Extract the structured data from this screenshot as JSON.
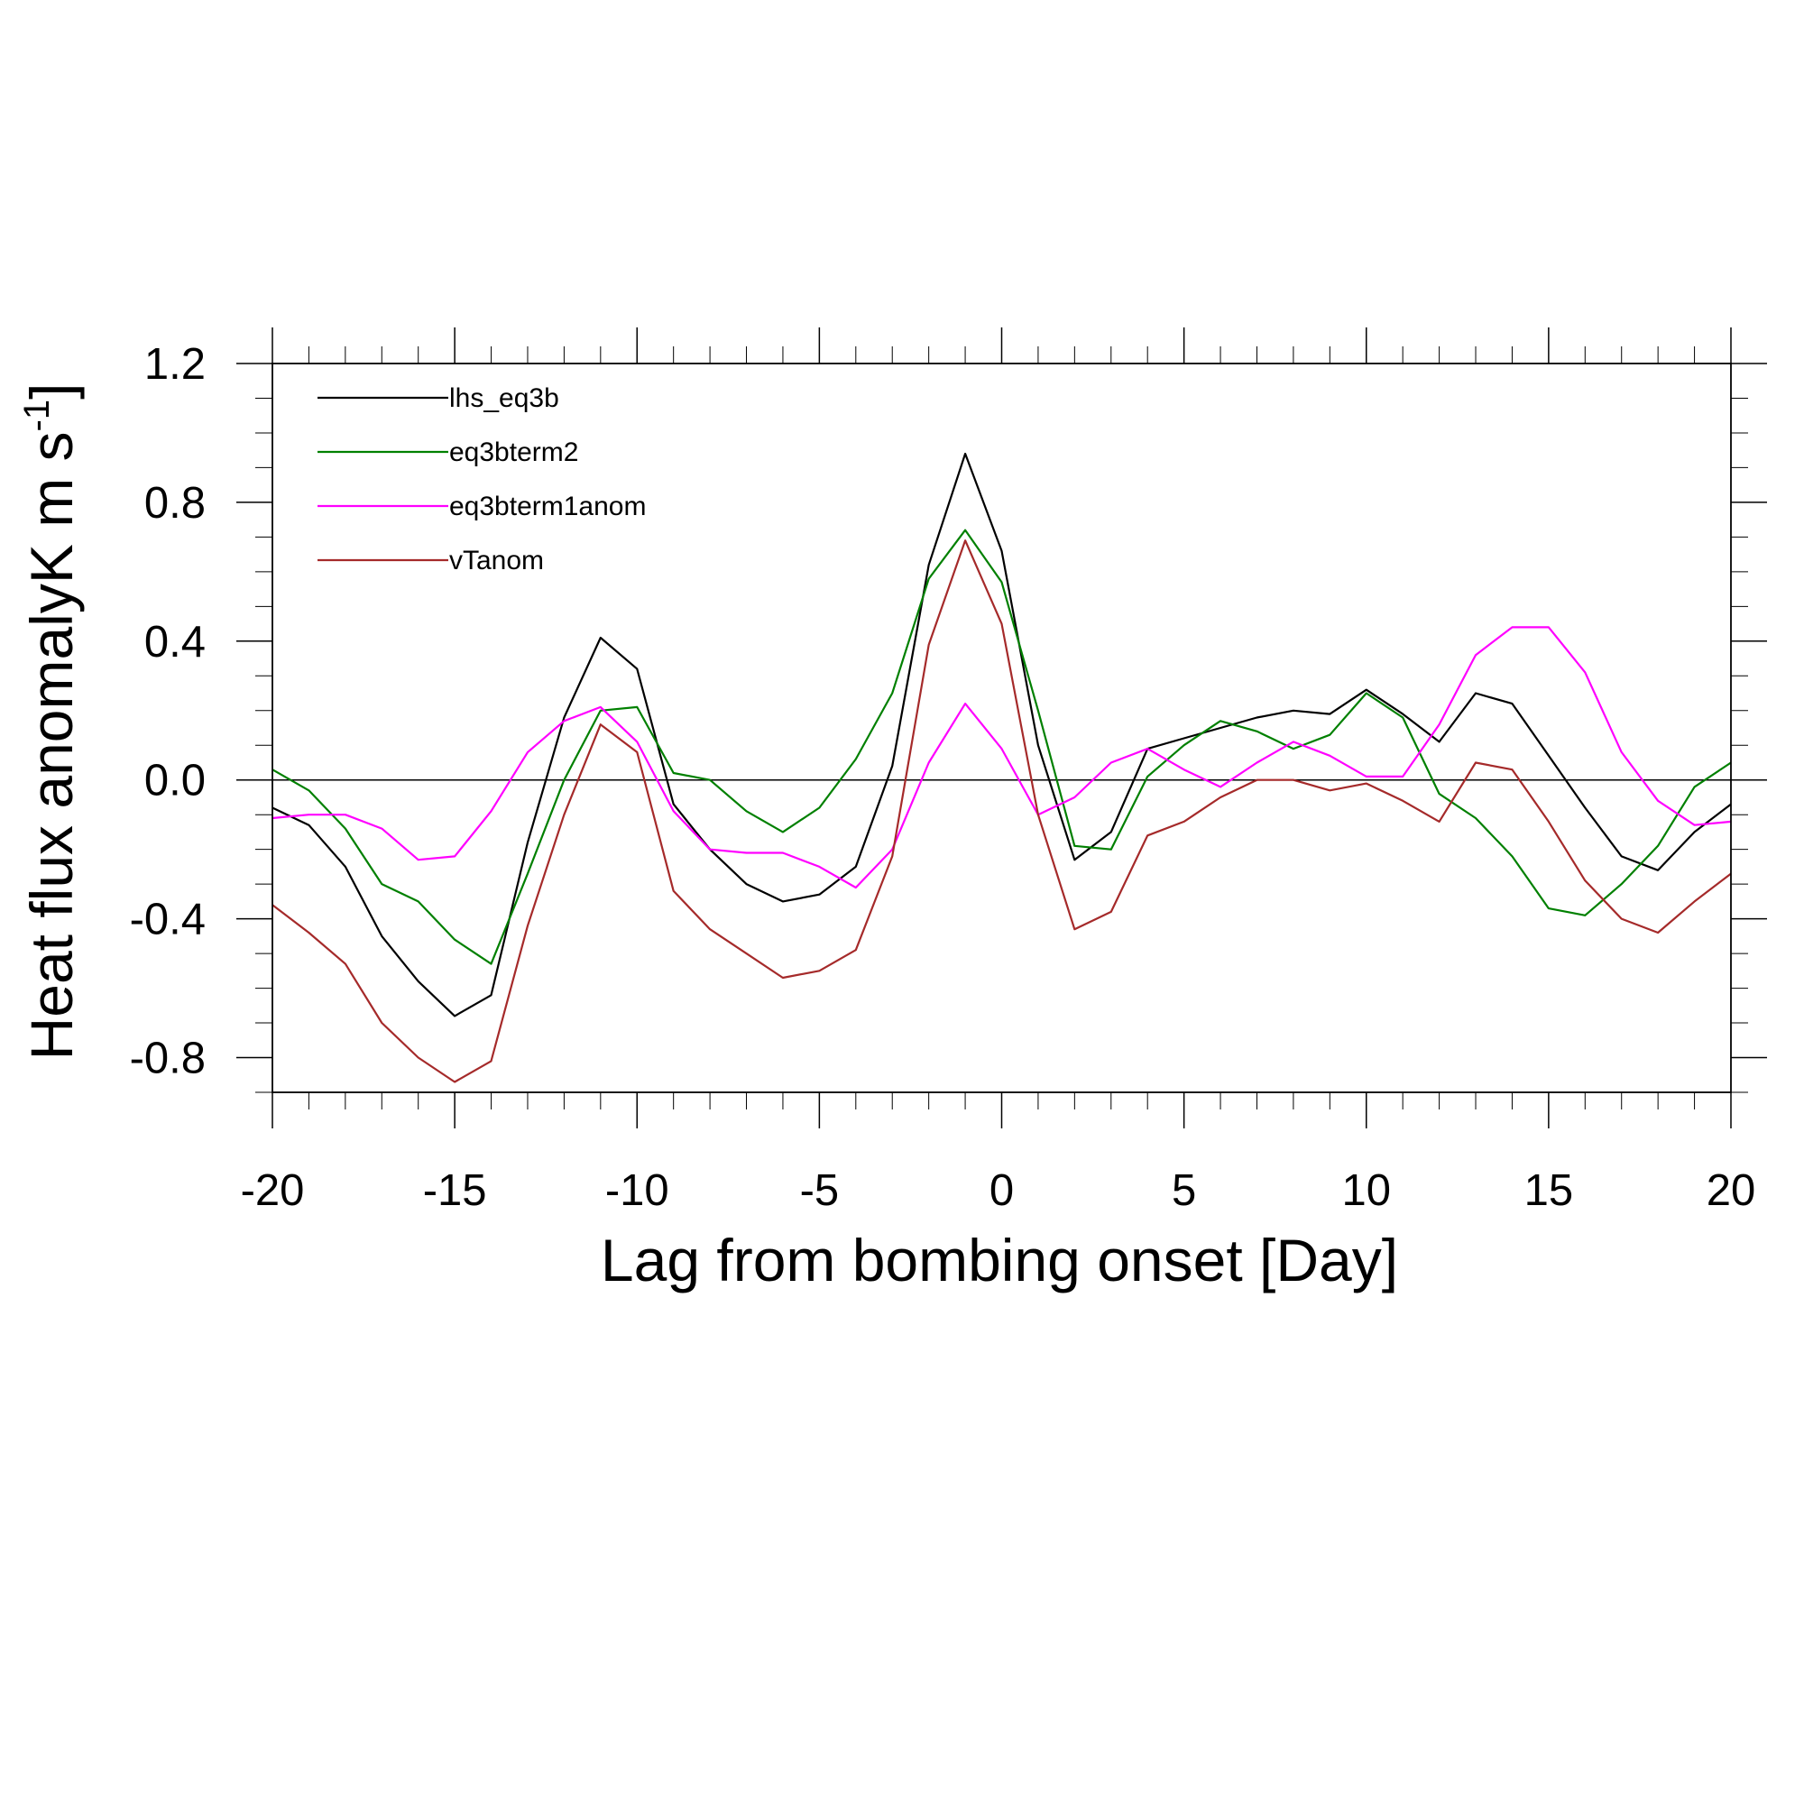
{
  "chart_data": {
    "type": "line",
    "xlabel": "Lag from bombing onset [Day]",
    "ylabel": {
      "main": "Heat flux anomalyK m s",
      "sup": "-1",
      "close": "]"
    },
    "ylabel_open": "[",
    "xlim": [
      -20,
      20
    ],
    "ylim": [
      -0.9,
      1.2
    ],
    "xticks": [
      -20,
      -15,
      -10,
      -5,
      0,
      5,
      10,
      15,
      20
    ],
    "xtick_labels": [
      "-20",
      "-15",
      "-10",
      "-5",
      "0",
      "5",
      "10",
      "15",
      "20"
    ],
    "yticks": [
      -0.8,
      -0.4,
      0.0,
      0.4,
      0.8,
      1.2
    ],
    "ytick_labels": [
      "-0.8",
      "-0.4",
      "0.0",
      "0.4",
      "0.8",
      "1.2"
    ],
    "zero_line": true,
    "grid": false,
    "legend_position": "top-left",
    "x": [
      -20,
      -19,
      -18,
      -17,
      -16,
      -15,
      -14,
      -13,
      -12,
      -11,
      -10,
      -9,
      -8,
      -7,
      -6,
      -5,
      -4,
      -3,
      -2,
      -1,
      0,
      1,
      2,
      3,
      4,
      5,
      6,
      7,
      8,
      9,
      10,
      11,
      12,
      13,
      14,
      15,
      16,
      17,
      18,
      19,
      20
    ],
    "series": [
      {
        "name": "lhs_eq3b",
        "color": "#000000",
        "values": [
          -0.08,
          -0.13,
          -0.25,
          -0.45,
          -0.58,
          -0.68,
          -0.62,
          -0.18,
          0.18,
          0.41,
          0.32,
          -0.07,
          -0.2,
          -0.3,
          -0.35,
          -0.33,
          -0.25,
          0.04,
          0.62,
          0.94,
          0.66,
          0.1,
          -0.23,
          -0.15,
          0.09,
          0.12,
          0.15,
          0.18,
          0.2,
          0.19,
          0.26,
          0.19,
          0.11,
          0.25,
          0.22,
          0.07,
          -0.08,
          -0.22,
          -0.26,
          -0.15,
          -0.07
        ]
      },
      {
        "name": "eq3bterm2",
        "color": "#008000",
        "values": [
          0.03,
          -0.03,
          -0.14,
          -0.3,
          -0.35,
          -0.46,
          -0.53,
          -0.27,
          0.0,
          0.2,
          0.21,
          0.02,
          0.0,
          -0.09,
          -0.15,
          -0.08,
          0.06,
          0.25,
          0.58,
          0.72,
          0.57,
          0.2,
          -0.19,
          -0.2,
          0.01,
          0.1,
          0.17,
          0.14,
          0.09,
          0.13,
          0.25,
          0.18,
          -0.04,
          -0.11,
          -0.22,
          -0.37,
          -0.39,
          -0.3,
          -0.19,
          -0.02,
          0.05
        ]
      },
      {
        "name": "eq3bterm1anom",
        "color": "#ff00ff",
        "values": [
          -0.11,
          -0.1,
          -0.1,
          -0.14,
          -0.23,
          -0.22,
          -0.09,
          0.08,
          0.17,
          0.21,
          0.11,
          -0.09,
          -0.2,
          -0.21,
          -0.21,
          -0.25,
          -0.31,
          -0.2,
          0.05,
          0.22,
          0.09,
          -0.1,
          -0.05,
          0.05,
          0.09,
          0.03,
          -0.02,
          0.05,
          0.11,
          0.07,
          0.01,
          0.01,
          0.16,
          0.36,
          0.44,
          0.44,
          0.31,
          0.08,
          -0.06,
          -0.13,
          -0.12
        ]
      },
      {
        "name": "vTanom",
        "color": "#a52a2a",
        "values": [
          -0.36,
          -0.44,
          -0.53,
          -0.7,
          -0.8,
          -0.87,
          -0.81,
          -0.42,
          -0.1,
          0.16,
          0.08,
          -0.32,
          -0.43,
          -0.5,
          -0.57,
          -0.55,
          -0.49,
          -0.22,
          0.39,
          0.69,
          0.45,
          -0.1,
          -0.43,
          -0.38,
          -0.16,
          -0.12,
          -0.05,
          0.0,
          0.0,
          -0.03,
          -0.01,
          -0.06,
          -0.12,
          0.05,
          0.03,
          -0.12,
          -0.29,
          -0.4,
          -0.44,
          -0.35,
          -0.27
        ]
      }
    ]
  }
}
